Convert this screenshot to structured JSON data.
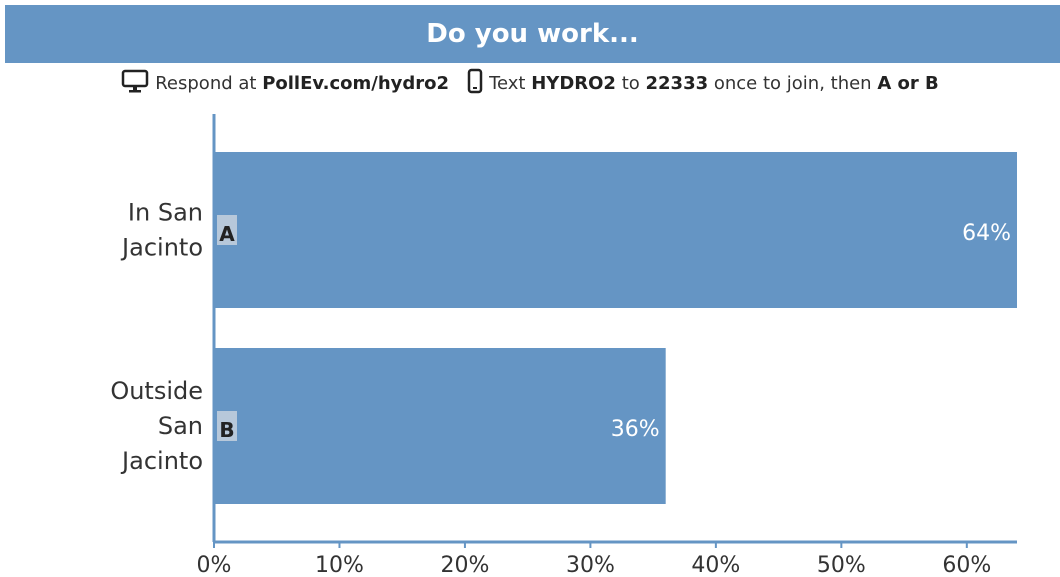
{
  "header": {
    "title": "Do you work..."
  },
  "instructions": {
    "respond_prefix": "Respond at",
    "respond_url": "PollEv.com/hydro2",
    "text_prefix": "Text",
    "text_code": "HYDRO2",
    "text_to": "to",
    "text_number": "22333",
    "text_suffix": "once to join, then",
    "text_options": "A or B",
    "icons": [
      "monitor-icon",
      "phone-icon"
    ]
  },
  "colors": {
    "header_bg": "#6595c4",
    "bar": "#6595c4",
    "letter_box": "#b7c8da",
    "axis": "#6595c4"
  },
  "chart_data": {
    "type": "bar",
    "orientation": "horizontal",
    "categories": [
      "In San Jacinto",
      "Outside San Jacinto"
    ],
    "category_lines": [
      [
        "In San",
        "Jacinto"
      ],
      [
        "Outside",
        "San",
        "Jacinto"
      ]
    ],
    "letters": [
      "A",
      "B"
    ],
    "values": [
      64,
      36
    ],
    "value_labels": [
      "64%",
      "36%"
    ],
    "x_ticks": [
      "0%",
      "10%",
      "20%",
      "30%",
      "40%",
      "50%",
      "60%"
    ],
    "x_tick_values": [
      0,
      10,
      20,
      30,
      40,
      50,
      60
    ],
    "xlim": [
      0,
      64
    ],
    "grid": false,
    "legend": "none"
  }
}
